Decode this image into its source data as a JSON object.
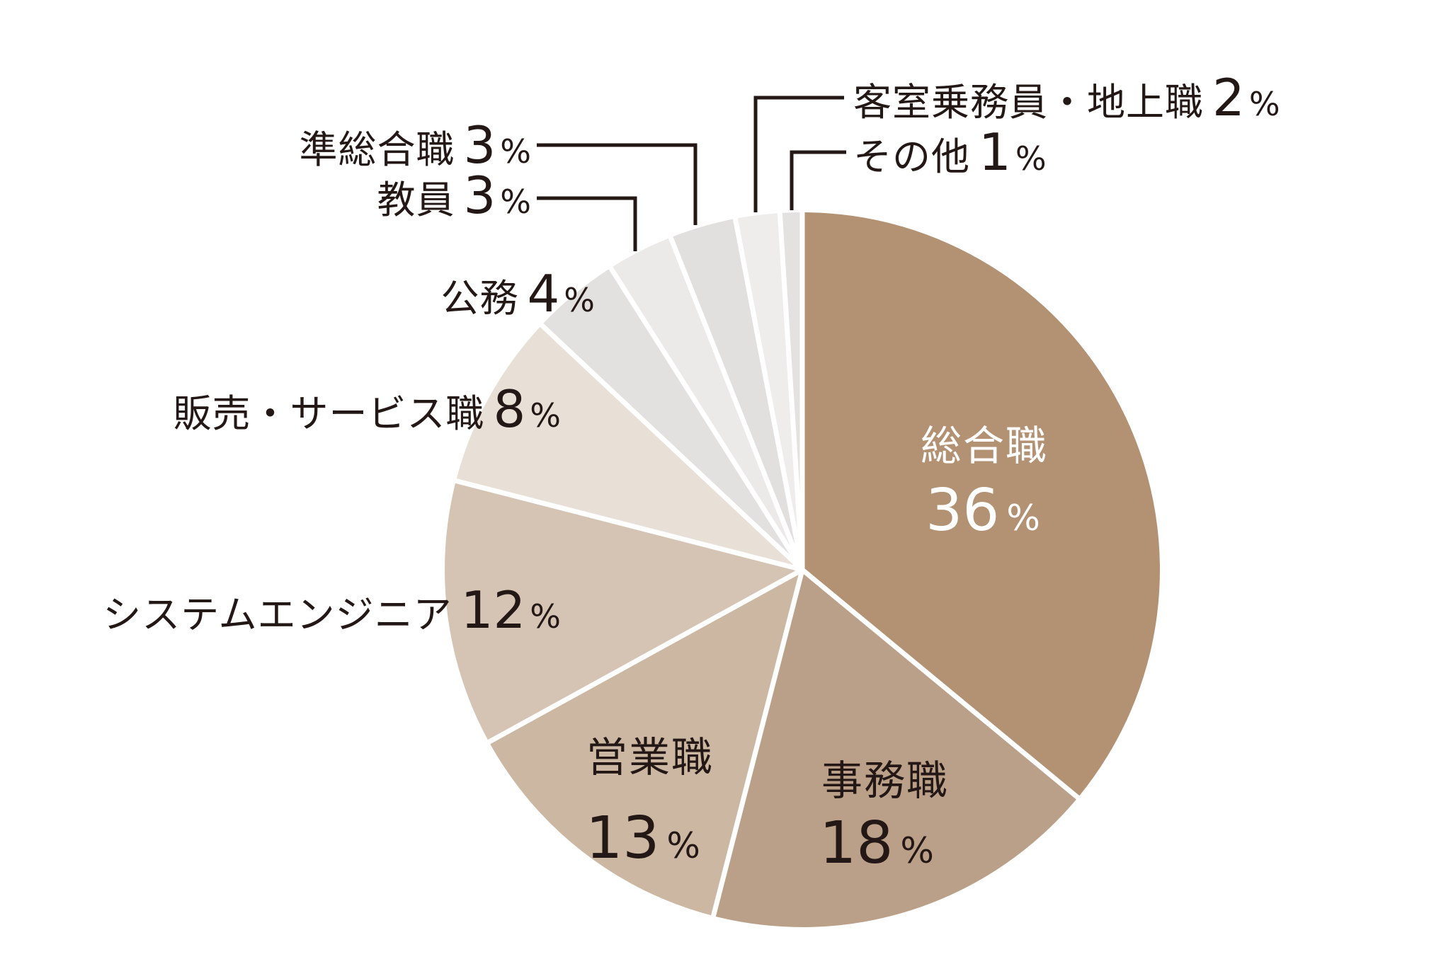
{
  "background_color": "#ffffff",
  "text_color": "#231815",
  "separator_color": "#ffffff",
  "leader_line_color": "#231815",
  "chart_data": {
    "type": "pie",
    "title": "",
    "unit": "%",
    "start_angle_deg": 0,
    "direction": "clockwise",
    "legend_position": "none",
    "segments": [
      {
        "id": "sogoshoku",
        "label": "総合職",
        "value": 36,
        "color": "#b39274",
        "label_placement": "inside",
        "label_color": "#ffffff"
      },
      {
        "id": "jimushoku",
        "label": "事務職",
        "value": 18,
        "color": "#bba089",
        "label_placement": "inside",
        "label_color": "#231815"
      },
      {
        "id": "eigyoshoku",
        "label": "営業職",
        "value": 13,
        "color": "#ccb7a2",
        "label_placement": "inside",
        "label_color": "#231815"
      },
      {
        "id": "system-engineer",
        "label": "システムエンジニア",
        "value": 12,
        "color": "#d5c4b4",
        "label_placement": "outside-left",
        "label_color": "#231815"
      },
      {
        "id": "hanbai-service",
        "label": "販売・サービス職",
        "value": 8,
        "color": "#e8e0d7",
        "label_placement": "outside-left",
        "label_color": "#231815"
      },
      {
        "id": "komu",
        "label": "公務",
        "value": 4,
        "color": "#e3e1df",
        "label_placement": "outside-left",
        "label_color": "#231815"
      },
      {
        "id": "kyoin",
        "label": "教員",
        "value": 3,
        "color": "#ebeae8",
        "label_placement": "outside-left-leader",
        "label_color": "#231815"
      },
      {
        "id": "jun-sogoshoku",
        "label": "準総合職",
        "value": 3,
        "color": "#e2e0de",
        "label_placement": "outside-left-leader",
        "label_color": "#231815"
      },
      {
        "id": "cabin-crew-ground-staff",
        "label": "客室乗務員・地上職",
        "value": 2,
        "color": "#eeedec",
        "label_placement": "outside-right-leader",
        "label_color": "#231815"
      },
      {
        "id": "sonota",
        "label": "その他",
        "value": 1,
        "color": "#e4e2e0",
        "label_placement": "outside-right-leader",
        "label_color": "#231815"
      }
    ]
  }
}
